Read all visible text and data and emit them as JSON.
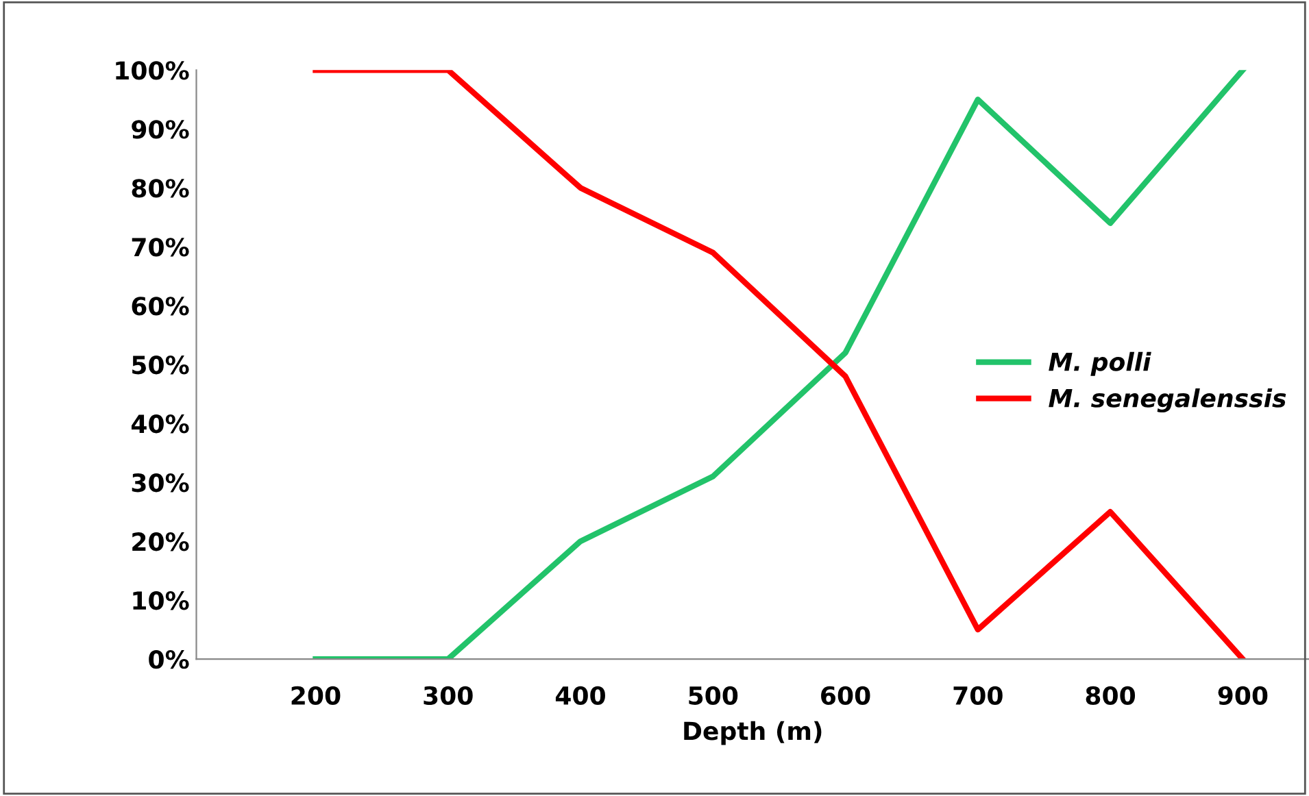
{
  "chart_data": {
    "type": "line",
    "xlabel": "Depth (m)",
    "categories": [
      "200",
      "300",
      "400",
      "500",
      "600",
      "700",
      "800",
      "900"
    ],
    "series": [
      {
        "name": "M. polli",
        "color": "#22c36a",
        "values": [
          0,
          0,
          20,
          31,
          52,
          95,
          74,
          100
        ]
      },
      {
        "name": "M. senegalenssis",
        "color": "#ff0000",
        "values": [
          100,
          100,
          80,
          69,
          48,
          5,
          25,
          0
        ]
      }
    ],
    "ylim": [
      0,
      100
    ],
    "yticks": [
      {
        "value": 0,
        "label": "0%"
      },
      {
        "value": 10,
        "label": "10%"
      },
      {
        "value": 20,
        "label": "20%"
      },
      {
        "value": 30,
        "label": "30%"
      },
      {
        "value": 40,
        "label": "40%"
      },
      {
        "value": 50,
        "label": "50%"
      },
      {
        "value": 60,
        "label": "60%"
      },
      {
        "value": 70,
        "label": "70%"
      },
      {
        "value": 80,
        "label": "80%"
      },
      {
        "value": 90,
        "label": "90%"
      },
      {
        "value": 100,
        "label": "100%"
      }
    ],
    "grid": false,
    "legend": "right",
    "marker": "none",
    "line_style": "solid"
  }
}
